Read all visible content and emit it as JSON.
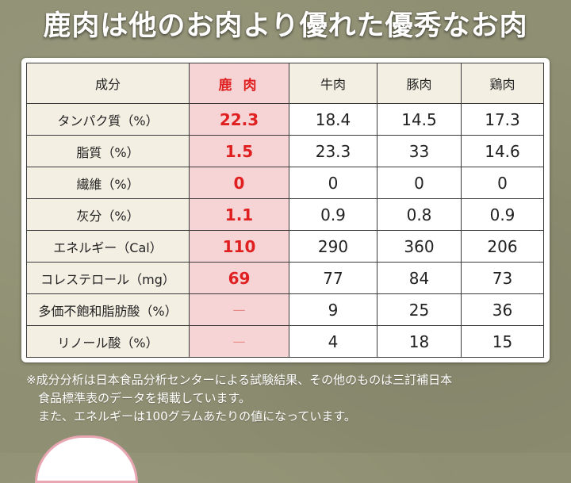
{
  "title": "鹿肉は他のお肉より優れた優秀なお肉",
  "table": {
    "headers": [
      "成分",
      "鹿 肉",
      "牛肉",
      "豚肉",
      "鶏肉"
    ],
    "rows": [
      {
        "label": "タンパク質（%）",
        "deer": "22.3",
        "beef": "18.4",
        "pork": "14.5",
        "chicken": "17.3"
      },
      {
        "label": "脂質（%）",
        "deer": "1.5",
        "beef": "23.3",
        "pork": "33",
        "chicken": "14.6"
      },
      {
        "label": "繊維（%）",
        "deer": "0",
        "beef": "0",
        "pork": "0",
        "chicken": "0"
      },
      {
        "label": "灰分（%）",
        "deer": "1.1",
        "beef": "0.9",
        "pork": "0.8",
        "chicken": "0.9"
      },
      {
        "label": "エネルギー（Cal）",
        "deer": "110",
        "beef": "290",
        "pork": "360",
        "chicken": "206"
      },
      {
        "label": "コレステロール（mg）",
        "deer": "69",
        "beef": "77",
        "pork": "84",
        "chicken": "73"
      },
      {
        "label": "多価不飽和脂肪酸（%）",
        "deer": "—",
        "beef": "9",
        "pork": "25",
        "chicken": "36"
      },
      {
        "label": "リノール酸（%）",
        "deer": "—",
        "beef": "4",
        "pork": "18",
        "chicken": "15"
      }
    ]
  },
  "notes": [
    "※成分分析は日本食品分析センターによる試験結果、その他のものは三訂補日本",
    "食品標準表のデータを掲載しています。",
    "また、エネルギーは100グラムあたりの値になっています。"
  ],
  "colors": {
    "background": "#8f8f73",
    "deer_highlight_bg": "#f6d3d4",
    "deer_text": "#e02020",
    "label_bg": "#f3efe2"
  }
}
